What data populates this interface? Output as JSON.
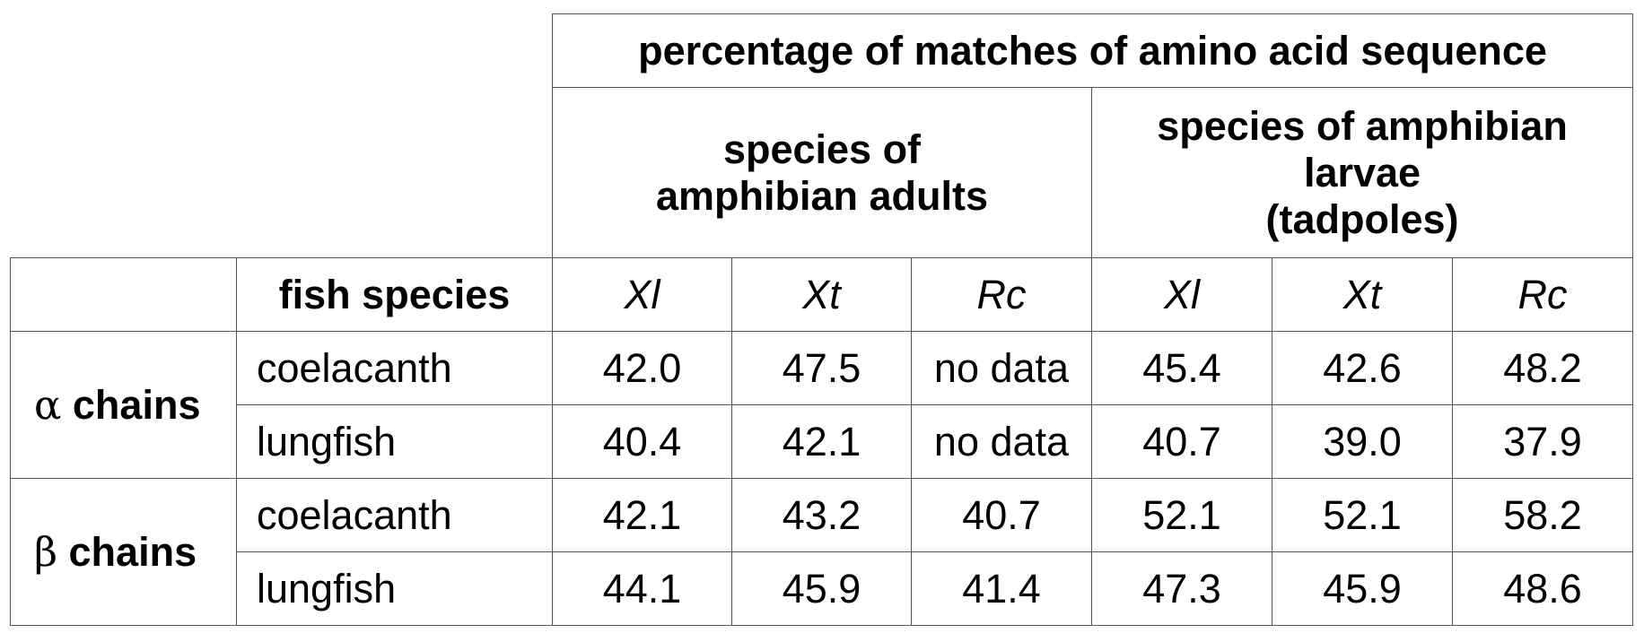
{
  "table": {
    "title": "percentage of matches of amino acid sequence",
    "groups": [
      {
        "lines": [
          "species of",
          "amphibian adults"
        ]
      },
      {
        "lines": [
          "species of amphibian",
          "larvae",
          "(tadpoles)"
        ]
      }
    ],
    "fish_header": "fish species",
    "species": [
      "Xl",
      "Xt",
      "Rc",
      "Xl",
      "Xt",
      "Rc"
    ],
    "chains": [
      {
        "greek": "α",
        "label": "chains",
        "rows": [
          {
            "fish": "coelacanth",
            "values": [
              "42.0",
              "47.5",
              "no data",
              "45.4",
              "42.6",
              "48.2"
            ]
          },
          {
            "fish": "lungfish",
            "values": [
              "40.4",
              "42.1",
              "no data",
              "40.7",
              "39.0",
              "37.9"
            ]
          }
        ]
      },
      {
        "greek": "β",
        "label": "chains",
        "rows": [
          {
            "fish": "coelacanth",
            "values": [
              "42.1",
              "43.2",
              "40.7",
              "52.1",
              "52.1",
              "58.2"
            ]
          },
          {
            "fish": "lungfish",
            "values": [
              "44.1",
              "45.9",
              "41.4",
              "47.3",
              "45.9",
              "48.6"
            ]
          }
        ]
      }
    ]
  }
}
